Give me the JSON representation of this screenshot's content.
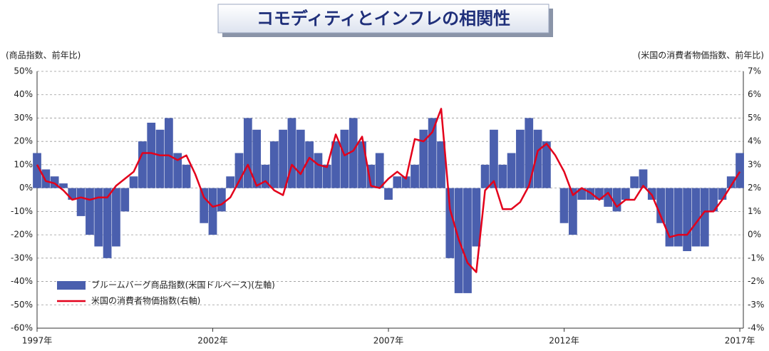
{
  "chart_data": {
    "type": "bar-line",
    "title": "コモディティとインフレの相関性",
    "y_label": "(商品指数、前年比)",
    "y2_label": "(米国の消費者物価指数、前年比)",
    "x": [
      1997,
      1997.25,
      1997.5,
      1997.75,
      1998,
      1998.25,
      1998.5,
      1998.75,
      1999,
      1999.25,
      1999.5,
      1999.75,
      2000,
      2000.25,
      2000.5,
      2000.75,
      2001,
      2001.25,
      2001.5,
      2001.75,
      2002,
      2002.25,
      2002.5,
      2002.75,
      2003,
      2003.25,
      2003.5,
      2003.75,
      2004,
      2004.25,
      2004.5,
      2004.75,
      2005,
      2005.25,
      2005.5,
      2005.75,
      2006,
      2006.25,
      2006.5,
      2006.75,
      2007,
      2007.25,
      2007.5,
      2007.75,
      2008,
      2008.25,
      2008.5,
      2008.75,
      2009,
      2009.25,
      2009.5,
      2009.75,
      2010,
      2010.25,
      2010.5,
      2010.75,
      2011,
      2011.25,
      2011.5,
      2011.75,
      2012,
      2012.25,
      2012.5,
      2012.75,
      2013,
      2013.25,
      2013.5,
      2013.75,
      2014,
      2014.25,
      2014.5,
      2014.75,
      2015,
      2015.25,
      2015.5,
      2015.75,
      2016,
      2016.25,
      2016.5,
      2016.75,
      2017
    ],
    "series": [
      {
        "name": "ブルームバーグ商品指数(米国ドルベース)(左軸)",
        "color": "#4a5fae",
        "kind": "bar",
        "values": [
          15,
          8,
          5,
          2,
          -5,
          -12,
          -20,
          -25,
          -30,
          -25,
          -10,
          5,
          20,
          28,
          25,
          30,
          15,
          10,
          0,
          -15,
          -20,
          -10,
          5,
          15,
          30,
          25,
          10,
          20,
          25,
          30,
          25,
          20,
          15,
          10,
          20,
          25,
          30,
          20,
          10,
          15,
          -5,
          5,
          5,
          10,
          25,
          30,
          20,
          -30,
          -45,
          -45,
          -25,
          10,
          25,
          10,
          15,
          25,
          30,
          25,
          20,
          0,
          -15,
          -20,
          -5,
          -5,
          -5,
          -8,
          -10,
          -5,
          5,
          8,
          -5,
          -15,
          -25,
          -25,
          -27,
          -25,
          -25,
          -10,
          -5,
          5,
          15
        ]
      },
      {
        "name": "米国の消費者物価指数(右軸)",
        "color": "#e3001b",
        "kind": "line",
        "axis": "y2",
        "values": [
          3.0,
          2.3,
          2.2,
          1.9,
          1.5,
          1.6,
          1.5,
          1.6,
          1.6,
          2.1,
          2.4,
          2.7,
          3.5,
          3.5,
          3.4,
          3.4,
          3.2,
          3.4,
          2.6,
          1.6,
          1.2,
          1.3,
          1.6,
          2.3,
          3.0,
          2.1,
          2.3,
          1.9,
          1.7,
          3.0,
          2.6,
          3.3,
          3.0,
          2.9,
          4.3,
          3.4,
          3.6,
          4.2,
          2.1,
          2.0,
          2.4,
          2.7,
          2.4,
          4.1,
          4.0,
          4.4,
          5.4,
          1.1,
          -0.2,
          -1.2,
          -1.6,
          1.9,
          2.3,
          1.1,
          1.1,
          1.4,
          2.1,
          3.6,
          3.9,
          3.4,
          2.7,
          1.7,
          2.0,
          1.8,
          1.5,
          1.8,
          1.2,
          1.5,
          1.5,
          2.1,
          1.7,
          0.8,
          -0.1,
          0.0,
          0.0,
          0.5,
          1.0,
          1.0,
          1.5,
          2.1,
          2.7
        ]
      }
    ],
    "xlim": [
      1997,
      2017.1
    ],
    "xticks": [
      {
        "value": 1997,
        "label": "1997年"
      },
      {
        "value": 2002,
        "label": "2002年"
      },
      {
        "value": 2007,
        "label": "2007年"
      },
      {
        "value": 2012,
        "label": "2012年"
      },
      {
        "value": 2017,
        "label": "2017年"
      }
    ],
    "ylim": [
      -60,
      50
    ],
    "yticks": [
      {
        "value": -60,
        "label": "-60%"
      },
      {
        "value": -50,
        "label": "-50%"
      },
      {
        "value": -40,
        "label": "-40%"
      },
      {
        "value": -30,
        "label": "-30%"
      },
      {
        "value": -20,
        "label": "-20%"
      },
      {
        "value": -10,
        "label": "-10%"
      },
      {
        "value": 0,
        "label": "0%"
      },
      {
        "value": 10,
        "label": "10%"
      },
      {
        "value": 20,
        "label": "20%"
      },
      {
        "value": 30,
        "label": "30%"
      },
      {
        "value": 40,
        "label": "40%"
      },
      {
        "value": 50,
        "label": "50%"
      }
    ],
    "y2lim": [
      -4,
      7
    ],
    "y2ticks": [
      {
        "value": -4,
        "label": "-4%"
      },
      {
        "value": -3,
        "label": "-3%"
      },
      {
        "value": -2,
        "label": "-2%"
      },
      {
        "value": -1,
        "label": "-1%"
      },
      {
        "value": 0,
        "label": "0%"
      },
      {
        "value": 1,
        "label": "1%"
      },
      {
        "value": 2,
        "label": "2%"
      },
      {
        "value": 3,
        "label": "3%"
      },
      {
        "value": 4,
        "label": "4%"
      },
      {
        "value": 5,
        "label": "5%"
      },
      {
        "value": 6,
        "label": "6%"
      },
      {
        "value": 7,
        "label": "7%"
      }
    ],
    "grid": true,
    "legend": "lower left"
  }
}
